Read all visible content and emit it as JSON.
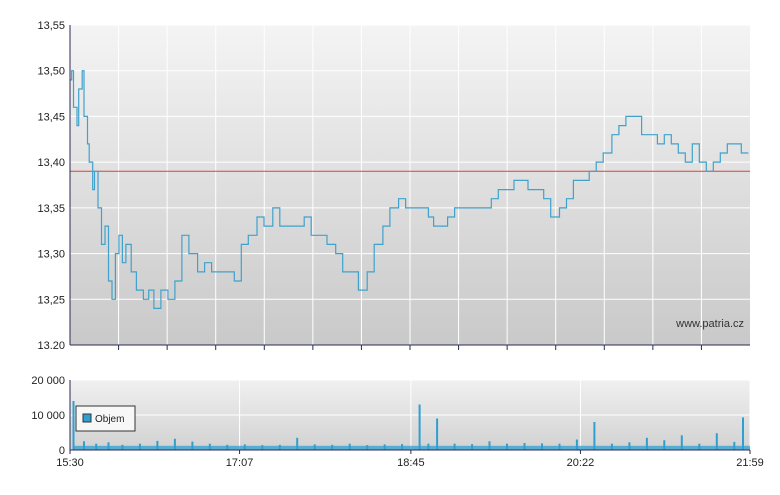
{
  "watermark": "www.patria.cz",
  "colors": {
    "line": "#3fa2cc",
    "reference": "#e04040",
    "volume": "#2f9fd0",
    "grid": "#ffffff",
    "axis": "#2a2a55"
  },
  "chart_data": [
    {
      "type": "line",
      "ylim": [
        13.2,
        13.55
      ],
      "xlim": [
        "15:30",
        "21:59"
      ],
      "y_ticks": [
        "13,55",
        "13,50",
        "13,45",
        "13,40",
        "13,35",
        "13,30",
        "13,25",
        "13.20"
      ],
      "reference_value": 13.39,
      "grid": true,
      "series": [
        {
          "x": [
            "15:30",
            "15:31",
            "15:32",
            "15:34",
            "15:35",
            "15:37",
            "15:38",
            "15:40",
            "15:41",
            "15:43",
            "15:44",
            "15:46",
            "15:48",
            "15:50",
            "15:52",
            "15:54",
            "15:56",
            "15:58",
            "16:00",
            "16:02",
            "16:05",
            "16:08",
            "16:12",
            "16:15",
            "16:18",
            "16:22",
            "16:26",
            "16:30",
            "16:34",
            "16:38",
            "16:43",
            "16:47",
            "16:51",
            "16:55",
            "17:00",
            "17:04",
            "17:08",
            "17:12",
            "17:17",
            "17:21",
            "17:26",
            "17:30",
            "17:35",
            "17:39",
            "17:44",
            "17:48",
            "17:53",
            "17:57",
            "18:02",
            "18:06",
            "18:11",
            "18:15",
            "18:20",
            "18:24",
            "18:29",
            "18:33",
            "18:38",
            "18:42",
            "18:45",
            "18:48",
            "18:51",
            "18:55",
            "18:58",
            "19:02",
            "19:06",
            "19:10",
            "19:14",
            "19:18",
            "19:22",
            "19:26",
            "19:31",
            "19:35",
            "19:39",
            "19:44",
            "19:48",
            "19:52",
            "19:57",
            "20:01",
            "20:05",
            "20:10",
            "20:14",
            "20:18",
            "20:22",
            "20:27",
            "20:31",
            "20:35",
            "20:40",
            "20:44",
            "20:48",
            "20:53",
            "20:57",
            "21:01",
            "21:06",
            "21:10",
            "21:14",
            "21:18",
            "21:22",
            "21:26",
            "21:30",
            "21:34",
            "21:38",
            "21:42",
            "21:46",
            "21:50",
            "21:54",
            "21:58"
          ],
          "values": [
            13.49,
            13.5,
            13.46,
            13.44,
            13.48,
            13.5,
            13.45,
            13.42,
            13.4,
            13.37,
            13.39,
            13.35,
            13.31,
            13.33,
            13.27,
            13.25,
            13.3,
            13.32,
            13.29,
            13.31,
            13.28,
            13.26,
            13.25,
            13.26,
            13.24,
            13.26,
            13.25,
            13.27,
            13.32,
            13.3,
            13.28,
            13.29,
            13.28,
            13.28,
            13.28,
            13.27,
            13.31,
            13.32,
            13.34,
            13.33,
            13.35,
            13.33,
            13.33,
            13.33,
            13.34,
            13.32,
            13.32,
            13.31,
            13.3,
            13.28,
            13.28,
            13.26,
            13.28,
            13.31,
            13.33,
            13.35,
            13.36,
            13.35,
            13.35,
            13.35,
            13.35,
            13.34,
            13.33,
            13.33,
            13.34,
            13.35,
            13.35,
            13.35,
            13.35,
            13.35,
            13.36,
            13.37,
            13.37,
            13.38,
            13.38,
            13.37,
            13.37,
            13.36,
            13.34,
            13.35,
            13.36,
            13.38,
            13.38,
            13.39,
            13.4,
            13.41,
            13.43,
            13.44,
            13.45,
            13.45,
            13.43,
            13.43,
            13.42,
            13.43,
            13.42,
            13.41,
            13.4,
            13.42,
            13.4,
            13.39,
            13.4,
            13.41,
            13.42,
            13.42,
            13.41,
            13.41
          ]
        }
      ]
    },
    {
      "type": "bar",
      "ylim": [
        0,
        20000
      ],
      "y_ticks": [
        "20 000",
        "10 000",
        "0"
      ],
      "x_ticks": [
        "15:30",
        "17:07",
        "18:45",
        "20:22",
        "21:59"
      ],
      "legend": {
        "position": "top-left",
        "label": "Objem"
      },
      "grid": true,
      "series": [
        {
          "name": "Objem",
          "x": [
            "15:32",
            "15:38",
            "15:45",
            "15:52",
            "16:00",
            "16:10",
            "16:20",
            "16:30",
            "16:40",
            "16:50",
            "17:00",
            "17:10",
            "17:20",
            "17:30",
            "17:40",
            "17:50",
            "18:00",
            "18:10",
            "18:20",
            "18:30",
            "18:40",
            "18:50",
            "18:55",
            "19:00",
            "19:10",
            "19:20",
            "19:30",
            "19:40",
            "19:50",
            "20:00",
            "20:10",
            "20:20",
            "20:30",
            "20:40",
            "20:50",
            "21:00",
            "21:10",
            "21:20",
            "21:30",
            "21:40",
            "21:50",
            "21:55"
          ],
          "values": [
            14000,
            2500,
            1800,
            2200,
            1500,
            1800,
            2600,
            3200,
            2400,
            1800,
            1500,
            1600,
            1400,
            1500,
            3500,
            1600,
            1500,
            1800,
            1400,
            1600,
            1700,
            13000,
            1800,
            9000,
            1800,
            1700,
            2500,
            1800,
            2000,
            1900,
            1800,
            3000,
            8000,
            1800,
            2200,
            3500,
            2800,
            4200,
            1800,
            4800,
            2300,
            9300
          ]
        }
      ]
    }
  ]
}
